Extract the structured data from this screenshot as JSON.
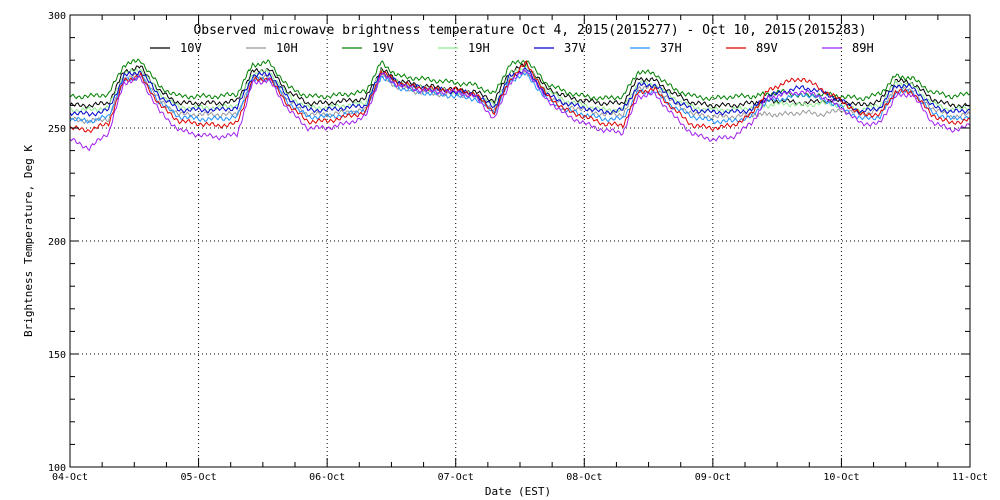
{
  "chart_data": {
    "type": "line",
    "title": "Observed microwave brightness temperature Oct  4, 2015(2015277) - Oct 10, 2015(2015283)",
    "xlabel": "Date (EST)",
    "ylabel": "Brightness Temperature, Deg K",
    "ylim": [
      100,
      300
    ],
    "xlim": [
      0,
      7
    ],
    "x_unit": "days since 04-Oct",
    "yticks": [
      100,
      150,
      200,
      250,
      300
    ],
    "xtick_labels": [
      "04-Oct",
      "05-Oct",
      "06-Oct",
      "07-Oct",
      "08-Oct",
      "09-Oct",
      "10-Oct",
      "11-Oct"
    ],
    "grid": "dotted, at major ticks",
    "legend_position": "top, under title",
    "series": [
      {
        "name": "10V",
        "color": "#000000",
        "x": [
          0,
          0.15,
          0.3,
          0.42,
          0.55,
          0.7,
          0.85,
          1.0,
          1.15,
          1.3,
          1.42,
          1.55,
          1.7,
          1.85,
          2.0,
          2.15,
          2.3,
          2.42,
          2.55,
          2.7,
          2.85,
          3.0,
          3.15,
          3.3,
          3.42,
          3.55,
          3.7,
          3.85,
          4.0,
          4.15,
          4.3,
          4.42,
          4.55,
          4.7,
          4.85,
          5.0,
          5.15,
          5.3,
          5.42,
          5.55,
          5.7,
          5.85,
          6.0,
          6.15,
          6.3,
          6.42,
          6.55,
          6.7,
          6.85,
          7.0
        ],
        "y": [
          260,
          260,
          261,
          275,
          277,
          266,
          261,
          261,
          261,
          262,
          275,
          276,
          266,
          261,
          261,
          262,
          263,
          276,
          271,
          269,
          268,
          267,
          266,
          262,
          275,
          278,
          268,
          264,
          262,
          261,
          261,
          272,
          271,
          265,
          261,
          260,
          260,
          261,
          262,
          262,
          261,
          262,
          262,
          260,
          262,
          271,
          270,
          263,
          260,
          260
        ]
      },
      {
        "name": "10H",
        "color": "#999999",
        "x": [
          0,
          0.15,
          0.3,
          0.42,
          0.55,
          0.7,
          0.85,
          1.0,
          1.15,
          1.3,
          1.42,
          1.55,
          1.7,
          1.85,
          2.0,
          2.15,
          2.3,
          2.42,
          2.55,
          2.7,
          2.85,
          3.0,
          3.15,
          3.3,
          3.42,
          3.55,
          3.7,
          3.85,
          4.0,
          4.15,
          4.3,
          4.42,
          4.55,
          4.7,
          4.85,
          5.0,
          5.15,
          5.3,
          5.42,
          5.55,
          5.7,
          5.85,
          6.0,
          6.15,
          6.3,
          6.42,
          6.55,
          6.7,
          6.85,
          7.0
        ],
        "y": [
          254,
          253,
          254,
          272,
          274,
          262,
          256,
          256,
          256,
          256,
          272,
          273,
          262,
          256,
          256,
          257,
          258,
          273,
          268,
          266,
          265,
          265,
          264,
          258,
          272,
          275,
          265,
          260,
          258,
          256,
          256,
          268,
          268,
          261,
          256,
          255,
          255,
          256,
          256,
          256,
          257,
          256,
          258,
          256,
          258,
          268,
          267,
          259,
          255,
          256
        ]
      },
      {
        "name": "19V",
        "color": "#008000",
        "x": [
          0,
          0.15,
          0.3,
          0.42,
          0.55,
          0.7,
          0.85,
          1.0,
          1.15,
          1.3,
          1.42,
          1.55,
          1.7,
          1.85,
          2.0,
          2.15,
          2.3,
          2.42,
          2.55,
          2.7,
          2.85,
          3.0,
          3.15,
          3.3,
          3.42,
          3.55,
          3.7,
          3.85,
          4.0,
          4.15,
          4.3,
          4.42,
          4.55,
          4.7,
          4.85,
          5.0,
          5.15,
          5.3,
          5.42,
          5.55,
          5.7,
          5.85,
          6.0,
          6.15,
          6.3,
          6.42,
          6.55,
          6.7,
          6.85,
          7.0
        ],
        "y": [
          264,
          264,
          265,
          278,
          280,
          268,
          264,
          264,
          264,
          265,
          278,
          279,
          268,
          264,
          264,
          265,
          266,
          279,
          273,
          272,
          271,
          270,
          269,
          265,
          278,
          280,
          270,
          266,
          264,
          263,
          264,
          275,
          274,
          267,
          264,
          263,
          264,
          264,
          265,
          266,
          264,
          265,
          264,
          263,
          265,
          273,
          272,
          266,
          264,
          265
        ]
      },
      {
        "name": "19H",
        "color": "#90ee90",
        "x": [
          0,
          0.15,
          0.3,
          0.42,
          0.55,
          0.7,
          0.85,
          1.0,
          1.15,
          1.3,
          1.42,
          1.55,
          1.7,
          1.85,
          2.0,
          2.15,
          2.3,
          2.42,
          2.55,
          2.7,
          2.85,
          3.0,
          3.15,
          3.3,
          3.42,
          3.55,
          3.7,
          3.85,
          4.0,
          4.15,
          4.3,
          4.42,
          4.55,
          4.7,
          4.85,
          5.0,
          5.15,
          5.3,
          5.42,
          5.55,
          5.7,
          5.85,
          6.0,
          6.15,
          6.3,
          6.42,
          6.55,
          6.7,
          6.85,
          7.0
        ],
        "y": [
          258,
          258,
          259,
          274,
          276,
          265,
          259,
          259,
          259,
          260,
          274,
          275,
          264,
          259,
          259,
          260,
          261,
          275,
          270,
          268,
          267,
          266,
          265,
          260,
          274,
          277,
          267,
          262,
          260,
          258,
          258,
          270,
          269,
          263,
          259,
          258,
          258,
          259,
          260,
          261,
          260,
          261,
          260,
          258,
          260,
          270,
          269,
          261,
          258,
          259
        ]
      },
      {
        "name": "37V",
        "color": "#0000cc",
        "x": [
          0,
          0.15,
          0.3,
          0.42,
          0.55,
          0.7,
          0.85,
          1.0,
          1.15,
          1.3,
          1.42,
          1.55,
          1.7,
          1.85,
          2.0,
          2.15,
          2.3,
          2.42,
          2.55,
          2.7,
          2.85,
          3.0,
          3.15,
          3.3,
          3.42,
          3.55,
          3.7,
          3.85,
          4.0,
          4.15,
          4.3,
          4.42,
          4.55,
          4.7,
          4.85,
          5.0,
          5.15,
          5.3,
          5.42,
          5.55,
          5.7,
          5.85,
          6.0,
          6.15,
          6.3,
          6.42,
          6.55,
          6.7,
          6.85,
          7.0
        ],
        "y": [
          257,
          256,
          258,
          273,
          275,
          264,
          258,
          258,
          258,
          259,
          273,
          274,
          263,
          258,
          258,
          259,
          260,
          275,
          270,
          268,
          267,
          266,
          265,
          259,
          273,
          276,
          265,
          261,
          259,
          257,
          258,
          269,
          269,
          262,
          258,
          257,
          257,
          258,
          264,
          266,
          268,
          266,
          262,
          257,
          259,
          269,
          268,
          260,
          257,
          258
        ]
      },
      {
        "name": "37H",
        "color": "#1e90ff",
        "x": [
          0,
          0.15,
          0.3,
          0.42,
          0.55,
          0.7,
          0.85,
          1.0,
          1.15,
          1.3,
          1.42,
          1.55,
          1.7,
          1.85,
          2.0,
          2.15,
          2.3,
          2.42,
          2.55,
          2.7,
          2.85,
          3.0,
          3.15,
          3.3,
          3.42,
          3.55,
          3.7,
          3.85,
          4.0,
          4.15,
          4.3,
          4.42,
          4.55,
          4.7,
          4.85,
          5.0,
          5.15,
          5.3,
          5.42,
          5.55,
          5.7,
          5.85,
          6.0,
          6.15,
          6.3,
          6.42,
          6.55,
          6.7,
          6.85,
          7.0
        ],
        "y": [
          254,
          253,
          255,
          271,
          273,
          261,
          255,
          254,
          254,
          255,
          271,
          272,
          261,
          255,
          255,
          256,
          258,
          273,
          268,
          266,
          265,
          264,
          263,
          257,
          271,
          274,
          263,
          258,
          256,
          254,
          254,
          266,
          266,
          259,
          255,
          253,
          253,
          255,
          262,
          263,
          265,
          263,
          259,
          254,
          255,
          266,
          266,
          257,
          254,
          255
        ]
      },
      {
        "name": "89V",
        "color": "#dd0000",
        "x": [
          0,
          0.15,
          0.3,
          0.42,
          0.55,
          0.7,
          0.85,
          1.0,
          1.15,
          1.3,
          1.42,
          1.55,
          1.7,
          1.85,
          2.0,
          2.15,
          2.3,
          2.42,
          2.55,
          2.7,
          2.85,
          3.0,
          3.15,
          3.3,
          3.42,
          3.55,
          3.7,
          3.85,
          4.0,
          4.15,
          4.3,
          4.42,
          4.55,
          4.7,
          4.85,
          5.0,
          5.15,
          5.3,
          5.42,
          5.55,
          5.7,
          5.85,
          6.0,
          6.15,
          6.3,
          6.42,
          6.55,
          6.7,
          6.85,
          7.0
        ],
        "y": [
          250,
          249,
          252,
          271,
          273,
          260,
          253,
          252,
          251,
          252,
          271,
          272,
          260,
          253,
          253,
          255,
          257,
          275,
          270,
          268,
          267,
          267,
          265,
          257,
          271,
          279,
          265,
          258,
          255,
          252,
          251,
          266,
          267,
          258,
          251,
          250,
          251,
          256,
          266,
          270,
          272,
          267,
          262,
          256,
          256,
          266,
          266,
          256,
          252,
          254
        ]
      },
      {
        "name": "89H",
        "color": "#a020f0",
        "x": [
          0,
          0.15,
          0.3,
          0.42,
          0.55,
          0.7,
          0.85,
          1.0,
          1.15,
          1.3,
          1.42,
          1.55,
          1.7,
          1.85,
          2.0,
          2.15,
          2.3,
          2.42,
          2.55,
          2.7,
          2.85,
          3.0,
          3.15,
          3.3,
          3.42,
          3.55,
          3.7,
          3.85,
          4.0,
          4.15,
          4.3,
          4.42,
          4.55,
          4.7,
          4.85,
          5.0,
          5.15,
          5.3,
          5.42,
          5.55,
          5.7,
          5.85,
          6.0,
          6.15,
          6.3,
          6.42,
          6.55,
          6.7,
          6.85,
          7.0
        ],
        "y": [
          245,
          241,
          248,
          270,
          272,
          257,
          249,
          247,
          246,
          247,
          270,
          271,
          258,
          250,
          250,
          252,
          255,
          274,
          269,
          267,
          266,
          266,
          264,
          254,
          270,
          276,
          263,
          256,
          252,
          249,
          248,
          264,
          265,
          255,
          247,
          245,
          246,
          252,
          263,
          265,
          266,
          264,
          259,
          252,
          252,
          264,
          265,
          253,
          249,
          251
        ]
      }
    ]
  }
}
